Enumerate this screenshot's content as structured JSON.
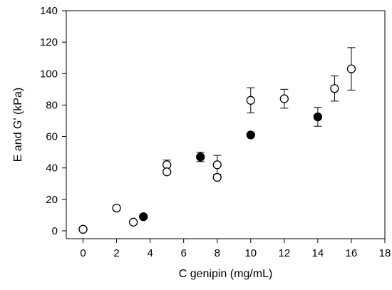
{
  "chart_data": {
    "type": "scatter",
    "xlabel": "C genipin (mg/mL)",
    "ylabel": "E and G' (kPa)",
    "xlim": [
      -1,
      18
    ],
    "ylim": [
      -5,
      140
    ],
    "xticks": [
      0,
      2,
      4,
      6,
      8,
      10,
      12,
      14,
      16,
      18
    ],
    "yticks": [
      0,
      20,
      40,
      60,
      80,
      100,
      120,
      140
    ],
    "grid": false,
    "legend": "none",
    "series": [
      {
        "marker": "filled-circle",
        "color": "#000000",
        "points": [
          {
            "x": 0,
            "y": 1
          },
          {
            "x": 3.6,
            "y": 9
          },
          {
            "x": 7,
            "y": 47,
            "err": 3
          },
          {
            "x": 10,
            "y": 61
          },
          {
            "x": 14,
            "y": 72.5,
            "err": 6
          }
        ]
      },
      {
        "marker": "open-circle",
        "color": "#000000",
        "points": [
          {
            "x": 0,
            "y": 1
          },
          {
            "x": 2,
            "y": 14.5
          },
          {
            "x": 3,
            "y": 5.5
          },
          {
            "x": 5,
            "y": 42,
            "err": 3
          },
          {
            "x": 5,
            "y": 37.5
          },
          {
            "x": 8,
            "y": 42,
            "err": 6
          },
          {
            "x": 8,
            "y": 34
          },
          {
            "x": 10,
            "y": 83,
            "err": 8
          },
          {
            "x": 12,
            "y": 84,
            "err": 6
          },
          {
            "x": 15,
            "y": 90.5,
            "err": 8
          },
          {
            "x": 16,
            "y": 103,
            "err": 13.5
          }
        ]
      }
    ]
  }
}
